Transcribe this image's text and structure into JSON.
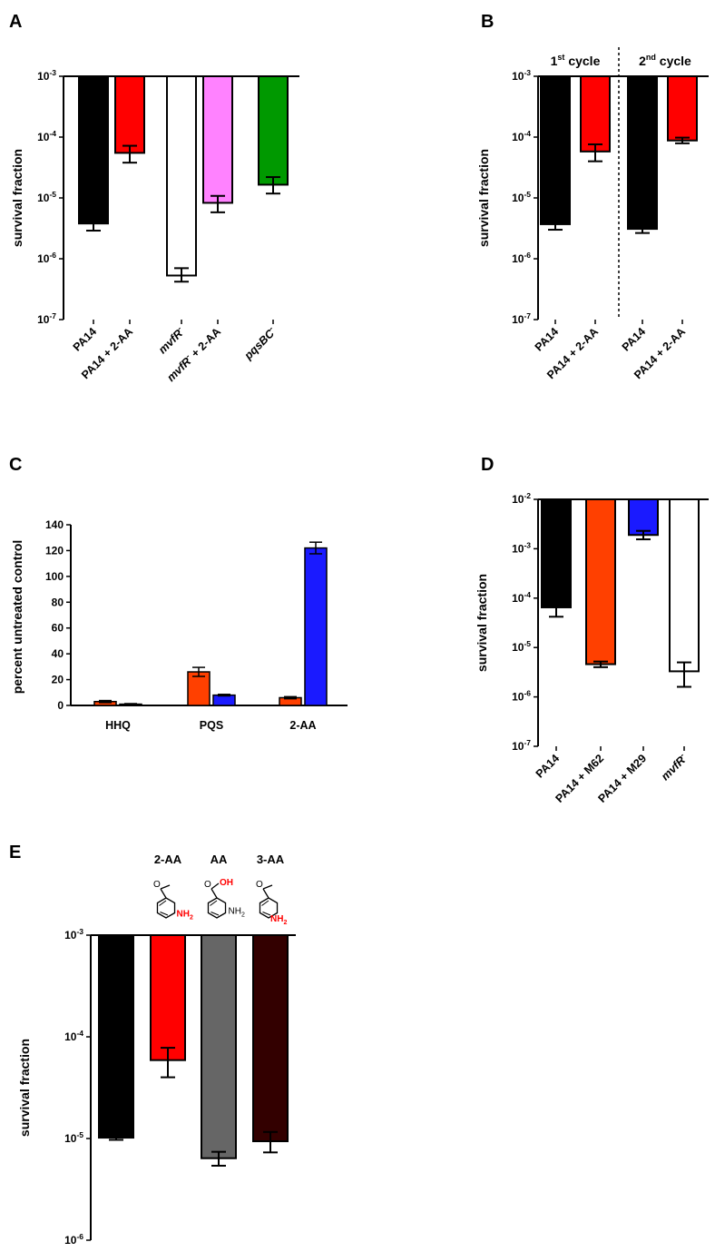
{
  "figure": {
    "panels": [
      "A",
      "B",
      "C",
      "D",
      "E"
    ],
    "colors": {
      "black": "#000000",
      "red": "#ff0000",
      "white": "#ffffff",
      "pink": "#ff82ff",
      "green": "#009900",
      "orange": "#ff4000",
      "blue": "#1a1aff",
      "gray": "#666666",
      "darkred": "#330000",
      "highlight": "#ff0000"
    }
  },
  "chart_data": [
    {
      "panel": "A",
      "type": "bar",
      "scale": "log",
      "ylabel": "survival fraction",
      "ylim": [
        1e-07,
        0.001
      ],
      "yticks": [
        {
          "value": 0.001,
          "label": "10",
          "exp": "-3"
        },
        {
          "value": 0.0001,
          "label": "10",
          "exp": "-4"
        },
        {
          "value": 1e-05,
          "label": "10",
          "exp": "-5"
        },
        {
          "value": 1e-06,
          "label": "10",
          "exp": "-6"
        },
        {
          "value": 1e-07,
          "label": "10",
          "exp": "-7"
        }
      ],
      "bars": [
        {
          "label": "PA14",
          "value": 3.8e-06,
          "err_low": 2.9e-06,
          "err_high": 4.6e-06,
          "color": "#000000"
        },
        {
          "label": "PA14 + 2-AA",
          "value": 5.5e-05,
          "err_low": 3.8e-05,
          "err_high": 7.2e-05,
          "color": "#ff0000"
        },
        {
          "label": "mvfR- ",
          "value": 5.3e-07,
          "err_low": 4.2e-07,
          "err_high": 7e-07,
          "color": "#ffffff",
          "italic": true,
          "sup": "-"
        },
        {
          "label": "mvfR-  + 2-AA",
          "value": 8.3e-06,
          "err_low": 5.8e-06,
          "err_high": 1.08e-05,
          "color": "#ff82ff",
          "italic_part": "mvfR",
          "sup": "-",
          "rest": " + 2-AA"
        },
        {
          "label": "pqsBC- ",
          "value": 1.65e-05,
          "err_low": 1.18e-05,
          "err_high": 2.2e-05,
          "color": "#009900",
          "italic": true,
          "sup": "-"
        }
      ],
      "xgroups": [
        0,
        1,
        2.6,
        3.6,
        5.2
      ]
    },
    {
      "panel": "B",
      "type": "bar",
      "scale": "log",
      "ylabel": "survival fraction",
      "ylim": [
        1e-07,
        0.001
      ],
      "yticks": [
        {
          "value": 0.001,
          "label": "10",
          "exp": "-3"
        },
        {
          "value": 0.0001,
          "label": "10",
          "exp": "-4"
        },
        {
          "value": 1e-05,
          "label": "10",
          "exp": "-5"
        },
        {
          "value": 1e-06,
          "label": "10",
          "exp": "-6"
        },
        {
          "value": 1e-07,
          "label": "10",
          "exp": "-7"
        }
      ],
      "annotations": [
        {
          "text": "1",
          "sup": "st",
          "rest": " cycle"
        },
        {
          "text": "2",
          "sup": "nd",
          "rest": " cycle"
        }
      ],
      "bars": [
        {
          "label": "PA14",
          "value": 3.7e-06,
          "err_low": 3e-06,
          "err_high": 4.5e-06,
          "color": "#000000"
        },
        {
          "label": "PA14 + 2-AA",
          "value": 5.8e-05,
          "err_low": 4e-05,
          "err_high": 7.6e-05,
          "color": "#ff0000"
        },
        {
          "label": "PA14",
          "value": 3.1e-06,
          "err_low": 2.65e-06,
          "err_high": 3.5e-06,
          "color": "#000000"
        },
        {
          "label": "PA14 + 2-AA",
          "value": 8.8e-05,
          "err_low": 7.9e-05,
          "err_high": 9.8e-05,
          "color": "#ff0000"
        }
      ]
    },
    {
      "panel": "C",
      "type": "bar",
      "scale": "linear",
      "ylabel": "percent untreated control",
      "ylim": [
        0,
        140
      ],
      "yticks": [
        0,
        20,
        40,
        60,
        80,
        100,
        120,
        140
      ],
      "categories": [
        "HHQ",
        "PQS",
        "2-AA"
      ],
      "series": [
        {
          "name": "orange",
          "color": "#ff4000",
          "values": [
            3,
            26,
            6
          ],
          "errors": [
            0.8,
            3.5,
            0.8
          ]
        },
        {
          "name": "blue",
          "color": "#1a1aff",
          "values": [
            1,
            8,
            122
          ],
          "errors": [
            0.4,
            0.6,
            4.5
          ]
        }
      ]
    },
    {
      "panel": "D",
      "type": "bar",
      "scale": "log",
      "ylabel": "survival fraction",
      "ylim": [
        1e-07,
        0.01
      ],
      "yticks": [
        {
          "value": 0.01,
          "label": "10",
          "exp": "-2"
        },
        {
          "value": 0.001,
          "label": "10",
          "exp": "-3"
        },
        {
          "value": 0.0001,
          "label": "10",
          "exp": "-4"
        },
        {
          "value": 1e-05,
          "label": "10",
          "exp": "-5"
        },
        {
          "value": 1e-06,
          "label": "10",
          "exp": "-6"
        },
        {
          "value": 1e-07,
          "label": "10",
          "exp": "-7"
        }
      ],
      "bars": [
        {
          "label": "PA14",
          "value": 6.5e-05,
          "err_low": 4.2e-05,
          "err_high": 8.5e-05,
          "color": "#000000"
        },
        {
          "label": "PA14 + M62",
          "value": 4.6e-06,
          "err_low": 4e-06,
          "err_high": 5.2e-06,
          "color": "#ff4000"
        },
        {
          "label": "PA14 + M29",
          "value": 0.0019,
          "err_low": 0.00155,
          "err_high": 0.0023,
          "color": "#1a1aff"
        },
        {
          "label": "mvfR- ",
          "value": 3.3e-06,
          "err_low": 1.6e-06,
          "err_high": 5e-06,
          "color": "#ffffff",
          "italic": true,
          "sup": "-"
        }
      ]
    },
    {
      "panel": "E",
      "type": "bar",
      "scale": "log",
      "ylabel": "survival fraction",
      "ylim": [
        1e-06,
        0.001
      ],
      "yticks": [
        {
          "value": 0.001,
          "label": "10",
          "exp": "-3"
        },
        {
          "value": 0.0001,
          "label": "10",
          "exp": "-4"
        },
        {
          "value": 1e-05,
          "label": "10",
          "exp": "-5"
        },
        {
          "value": 1e-06,
          "label": "10",
          "exp": "-6"
        }
      ],
      "compounds": [
        {
          "name": "2-AA",
          "substituent": "NH2",
          "substituent_display": "NH",
          "sub2": "2"
        },
        {
          "name": "AA",
          "substituent": "OH",
          "other": "NH2"
        },
        {
          "name": "3-AA",
          "substituent": "NH2",
          "substituent_display": "NH",
          "sub2": "2"
        }
      ],
      "bars": [
        {
          "value": 1.02e-05,
          "err_low": 9.7e-06,
          "err_high": 1.05e-05,
          "color": "#000000"
        },
        {
          "value": 5.9e-05,
          "err_low": 4e-05,
          "err_high": 7.8e-05,
          "color": "#ff0000"
        },
        {
          "value": 6.4e-06,
          "err_low": 5.4e-06,
          "err_high": 7.4e-06,
          "color": "#666666"
        },
        {
          "value": 9.4e-06,
          "err_low": 7.3e-06,
          "err_high": 1.16e-05,
          "color": "#330000"
        }
      ]
    }
  ]
}
